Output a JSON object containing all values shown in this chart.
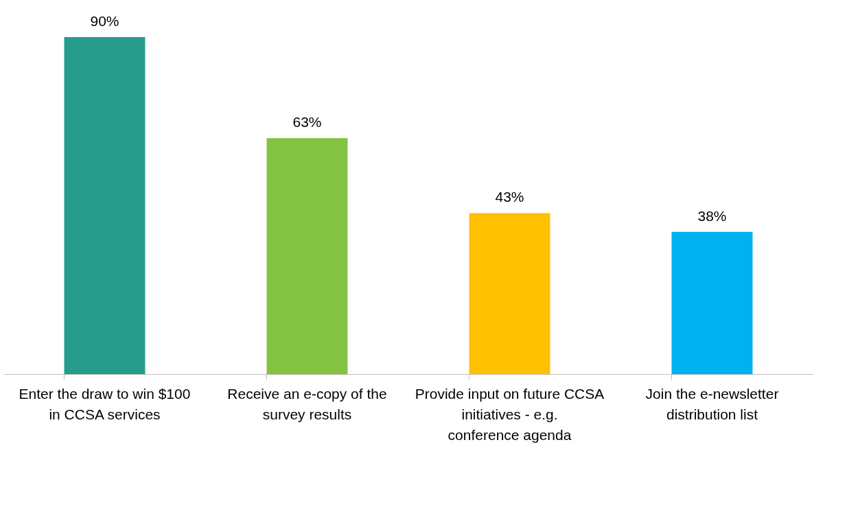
{
  "chart_data": {
    "type": "bar",
    "categories": [
      "Enter the draw to win $100 in CCSA services",
      "Receive an e-copy of the survey results",
      "Provide input on future CCSA initiatives - e.g. conference agenda",
      "Join the e-newsletter distribution list"
    ],
    "values": [
      90,
      63,
      43,
      38
    ],
    "colors": [
      "#269d8c",
      "#82c341",
      "#ffc000",
      "#00b0f0"
    ],
    "value_labels": [
      "90%",
      "63%",
      "43%",
      "38%"
    ]
  }
}
